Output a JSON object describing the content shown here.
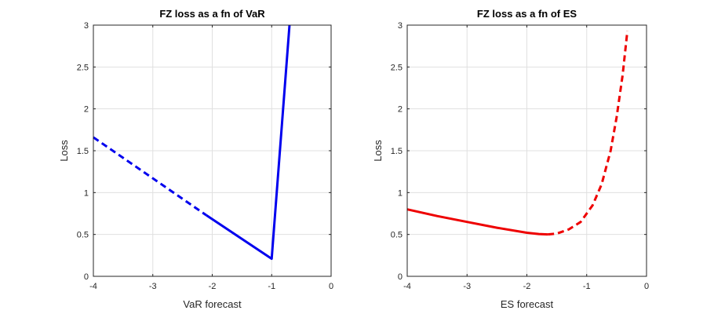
{
  "chart_data": [
    {
      "type": "line",
      "title": "FZ loss as a fn of VaR",
      "xlabel": "VaR forecast",
      "ylabel": "Loss",
      "xlim": [
        -4,
        0
      ],
      "ylim": [
        0,
        3
      ],
      "xticks": [
        "-4",
        "-3",
        "-2",
        "-1",
        "0"
      ],
      "yticks": [
        "0",
        "0.5",
        "1",
        "1.5",
        "2",
        "2.5",
        "3"
      ],
      "grid": true,
      "color": "#0000ee",
      "series": [
        {
          "name": "dashed",
          "style": "dashed",
          "x": [
            -4,
            -2.1
          ],
          "y": [
            1.66,
            0.73
          ]
        },
        {
          "name": "solid",
          "style": "solid",
          "x": [
            -2.1,
            -1.0,
            -0.7
          ],
          "y": [
            0.73,
            0.21,
            3.0
          ]
        }
      ]
    },
    {
      "type": "line",
      "title": "FZ loss as a fn of ES",
      "xlabel": "ES forecast",
      "ylabel": "Loss",
      "xlim": [
        -4,
        0
      ],
      "ylim": [
        0,
        3
      ],
      "xticks": [
        "-4",
        "-3",
        "-2",
        "-1",
        "0"
      ],
      "yticks": [
        "0",
        "0.5",
        "1",
        "1.5",
        "2",
        "2.5",
        "3"
      ],
      "grid": true,
      "color": "#ee0000",
      "series": [
        {
          "name": "solid",
          "style": "solid",
          "x": [
            -4.0,
            -3.5,
            -3.0,
            -2.5,
            -2.0,
            -1.8,
            -1.65
          ],
          "y": [
            0.8,
            0.72,
            0.65,
            0.58,
            0.52,
            0.505,
            0.5
          ]
        },
        {
          "name": "dashed",
          "style": "dashed",
          "x": [
            -1.65,
            -1.5,
            -1.3,
            -1.1,
            -0.9,
            -0.75,
            -0.6,
            -0.5,
            -0.4,
            -0.32
          ],
          "y": [
            0.5,
            0.51,
            0.56,
            0.65,
            0.85,
            1.1,
            1.5,
            1.9,
            2.4,
            2.93
          ]
        }
      ]
    }
  ]
}
